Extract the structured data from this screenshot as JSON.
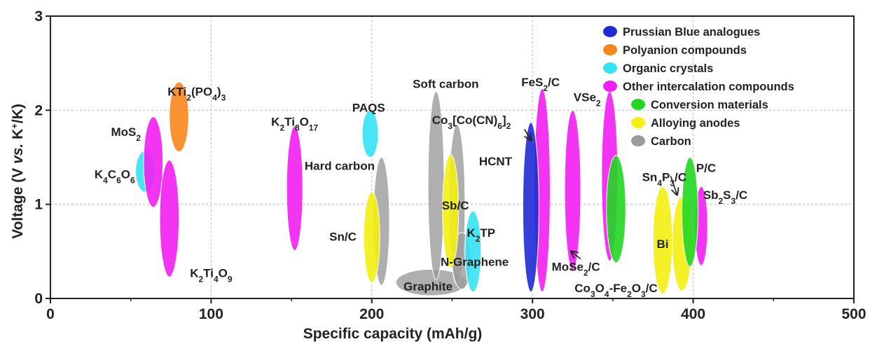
{
  "chart_data": {
    "type": "scatter",
    "xlabel": "Specific capacity (mAh/g)",
    "ylabel": {
      "pre": "Voltage (V ",
      "vs": "vs.",
      "mid": " K",
      "sup": "+",
      "post": "/K)"
    },
    "xlim": [
      0,
      500
    ],
    "ylim": [
      0,
      3
    ],
    "xticks": [
      0,
      100,
      200,
      300,
      400,
      500
    ],
    "yticks": [
      0,
      1,
      2,
      3
    ],
    "grid": true,
    "legend": {
      "placement": "top-right",
      "entries": [
        {
          "key": "prussian",
          "name": "Prussian Blue analogues",
          "color": "#1f2bd6"
        },
        {
          "key": "polyanion",
          "name": "Polyanion compounds",
          "color": "#f7861c"
        },
        {
          "key": "organic",
          "name": "Organic crystals",
          "color": "#35e2f4"
        },
        {
          "key": "intercalation",
          "name": "Other intercalation compounds",
          "color": "#f21ff2"
        },
        {
          "key": "conversion",
          "name": "Conversion materials",
          "color": "#22d622"
        },
        {
          "key": "alloying",
          "name": "Alloying anodes",
          "color": "#f4f011"
        },
        {
          "key": "carbon",
          "name": "Carbon",
          "color": "#9b9b9b"
        }
      ]
    },
    "regions": [
      {
        "category": "carbon",
        "cx": 237,
        "cy": 0.17,
        "rx": 22,
        "ry": 0.14
      },
      {
        "category": "carbon",
        "cx": 240,
        "cy": 1.2,
        "rx": 5,
        "ry": 1.0
      },
      {
        "category": "carbon",
        "cx": 253,
        "cy": 1.0,
        "rx": 5,
        "ry": 0.85
      },
      {
        "category": "carbon",
        "cx": 206,
        "cy": 0.82,
        "rx": 5,
        "ry": 0.68
      },
      {
        "category": "carbon",
        "cx": 256,
        "cy": 0.4,
        "rx": 6,
        "ry": 0.3
      },
      {
        "category": "polyanion",
        "cx": 80,
        "cy": 1.93,
        "rx": 6,
        "ry": 0.37
      },
      {
        "category": "organic",
        "cx": 59,
        "cy": 1.35,
        "rx": 6,
        "ry": 0.22
      },
      {
        "category": "organic",
        "cx": 199,
        "cy": 1.75,
        "rx": 5,
        "ry": 0.25
      },
      {
        "category": "organic",
        "cx": 263,
        "cy": 0.5,
        "rx": 5,
        "ry": 0.43
      },
      {
        "category": "intercalation",
        "cx": 64,
        "cy": 1.45,
        "rx": 6,
        "ry": 0.48
      },
      {
        "category": "intercalation",
        "cx": 74,
        "cy": 0.85,
        "rx": 6,
        "ry": 0.62
      },
      {
        "category": "intercalation",
        "cx": 152,
        "cy": 1.17,
        "rx": 5,
        "ry": 0.66
      },
      {
        "category": "intercalation",
        "cx": 306,
        "cy": 1.15,
        "rx": 5,
        "ry": 1.08
      },
      {
        "category": "intercalation",
        "cx": 325,
        "cy": 1.15,
        "rx": 5,
        "ry": 0.85
      },
      {
        "category": "intercalation",
        "cx": 348,
        "cy": 1.3,
        "rx": 5,
        "ry": 0.9
      },
      {
        "category": "intercalation",
        "cx": 405,
        "cy": 0.77,
        "rx": 4,
        "ry": 0.42
      },
      {
        "category": "alloying",
        "cx": 200,
        "cy": 0.65,
        "rx": 5,
        "ry": 0.48
      },
      {
        "category": "alloying",
        "cx": 249,
        "cy": 0.93,
        "rx": 5,
        "ry": 0.6
      },
      {
        "category": "alloying",
        "cx": 381,
        "cy": 0.62,
        "rx": 6,
        "ry": 0.57
      },
      {
        "category": "alloying",
        "cx": 393,
        "cy": 0.58,
        "rx": 6,
        "ry": 0.5
      },
      {
        "category": "prussian",
        "cx": 299,
        "cy": 0.97,
        "rx": 5,
        "ry": 0.9
      },
      {
        "category": "conversion",
        "cx": 352,
        "cy": 0.95,
        "rx": 6,
        "ry": 0.57
      },
      {
        "category": "conversion",
        "cx": 398,
        "cy": 0.92,
        "rx": 5,
        "ry": 0.58
      }
    ],
    "labels": [
      {
        "parts": [
          [
            "KTi"
          ],
          [
            "2",
            "sub"
          ],
          [
            "(PO"
          ],
          [
            "4",
            "sub"
          ],
          [
            ")"
          ],
          [
            "3",
            "sub"
          ]
        ],
        "x": 91,
        "y": 2.2
      },
      {
        "parts": [
          [
            "MoS"
          ],
          [
            "2",
            "sub"
          ]
        ],
        "x": 47,
        "y": 1.77
      },
      {
        "parts": [
          [
            "K"
          ],
          [
            "4",
            "sub"
          ],
          [
            "C"
          ],
          [
            "6",
            "sub"
          ],
          [
            "O"
          ],
          [
            "6",
            "sub"
          ]
        ],
        "x": 40,
        "y": 1.32
      },
      {
        "parts": [
          [
            "K"
          ],
          [
            "2",
            "sub"
          ],
          [
            "Ti"
          ],
          [
            "4",
            "sub"
          ],
          [
            "O"
          ],
          [
            "9",
            "sub"
          ]
        ],
        "x": 100,
        "y": 0.27
      },
      {
        "parts": [
          [
            "K"
          ],
          [
            "2",
            "sub"
          ],
          [
            "Ti"
          ],
          [
            "8",
            "sub"
          ],
          [
            "O"
          ],
          [
            "17",
            "sub"
          ]
        ],
        "x": 152,
        "y": 1.88
      },
      {
        "parts": [
          [
            "PAQS"
          ]
        ],
        "x": 198,
        "y": 2.03
      },
      {
        "parts": [
          [
            "Soft carbon"
          ]
        ],
        "x": 246,
        "y": 2.28
      },
      {
        "parts": [
          [
            "Co"
          ],
          [
            "3",
            "sub"
          ],
          [
            "[Co(CN)"
          ],
          [
            "6",
            "sub"
          ],
          [
            "]"
          ],
          [
            "2",
            "sub"
          ]
        ],
        "x": 262,
        "y": 1.9
      },
      {
        "parts": [
          [
            "Hard carbon"
          ]
        ],
        "x": 180,
        "y": 1.41
      },
      {
        "parts": [
          [
            "HCNT"
          ]
        ],
        "x": 277,
        "y": 1.46
      },
      {
        "parts": [
          [
            "Sb/C"
          ]
        ],
        "x": 252,
        "y": 0.99
      },
      {
        "parts": [
          [
            "K"
          ],
          [
            "2",
            "sub"
          ],
          [
            "TP"
          ]
        ],
        "x": 268,
        "y": 0.7
      },
      {
        "parts": [
          [
            "Sn/C"
          ]
        ],
        "x": 182,
        "y": 0.66
      },
      {
        "parts": [
          [
            "N-Graphene"
          ]
        ],
        "x": 264,
        "y": 0.39
      },
      {
        "parts": [
          [
            "Graphite"
          ]
        ],
        "x": 235,
        "y": 0.13
      },
      {
        "parts": [
          [
            "FeS"
          ],
          [
            "2",
            "sub"
          ],
          [
            "/C"
          ]
        ],
        "x": 305,
        "y": 2.3
      },
      {
        "parts": [
          [
            "VSe"
          ],
          [
            "2",
            "sub"
          ]
        ],
        "x": 334,
        "y": 2.14
      },
      {
        "parts": [
          [
            "MoSe"
          ],
          [
            "2",
            "sub"
          ],
          [
            "/C"
          ]
        ],
        "x": 327,
        "y": 0.34
      },
      {
        "parts": [
          [
            "Co"
          ],
          [
            "3",
            "sub"
          ],
          [
            "O"
          ],
          [
            "4",
            "sub"
          ],
          [
            "-Fe"
          ],
          [
            "2",
            "sub"
          ],
          [
            "O"
          ],
          [
            "3",
            "sub"
          ],
          [
            "/C"
          ]
        ],
        "x": 352,
        "y": 0.11
      },
      {
        "parts": [
          [
            "Sn"
          ],
          [
            "4",
            "sub"
          ],
          [
            "P"
          ],
          [
            "3",
            "sub"
          ],
          [
            "/C"
          ]
        ],
        "x": 382,
        "y": 1.29
      },
      {
        "parts": [
          [
            "P/C"
          ]
        ],
        "x": 408,
        "y": 1.39
      },
      {
        "parts": [
          [
            "Sb"
          ],
          [
            "2",
            "sub"
          ],
          [
            "S"
          ],
          [
            "3",
            "sub"
          ],
          [
            "/C"
          ]
        ],
        "x": 420,
        "y": 1.1
      },
      {
        "parts": [
          [
            "Bi"
          ]
        ],
        "x": 381,
        "y": 0.58
      }
    ],
    "arrows": [
      {
        "name": "arrow-co3-co-cn",
        "x1": 295,
        "y1": 1.8,
        "x2": 299,
        "y2": 1.68
      },
      {
        "name": "arrow-sn4p3-c",
        "x1": 386,
        "y1": 1.3,
        "x2": 390,
        "y2": 1.1
      },
      {
        "name": "arrow-mose2-c",
        "x1": 330,
        "y1": 0.42,
        "x2": 324,
        "y2": 0.5
      }
    ]
  }
}
